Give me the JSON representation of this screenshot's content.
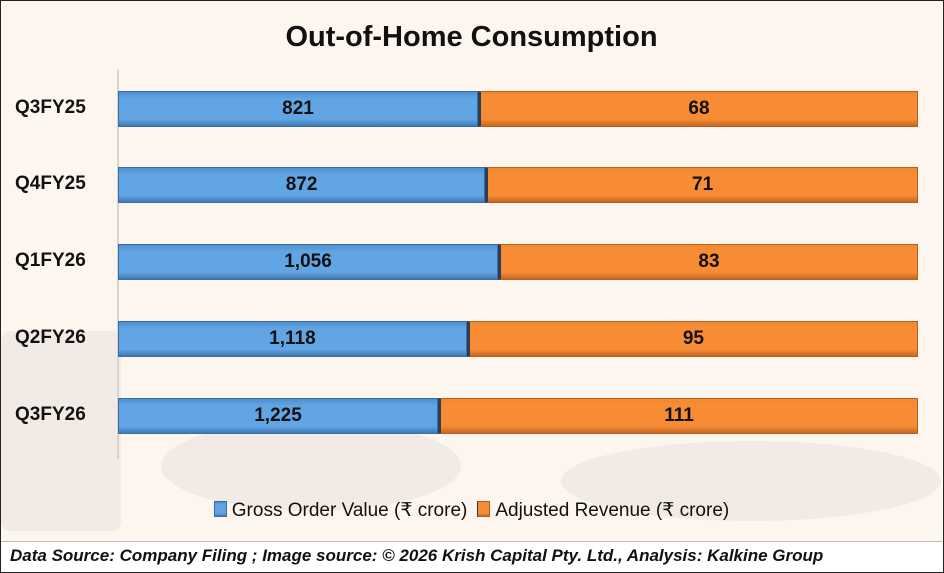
{
  "chart_data": {
    "type": "bar",
    "orientation": "horizontal",
    "stacked": "100%",
    "title": "Out-of-Home Consumption",
    "categories": [
      "Q3FY25",
      "Q4FY25",
      "Q1FY26",
      "Q2FY26",
      "Q3FY26"
    ],
    "series": [
      {
        "name": "Gross Order Value (₹ crore)",
        "color": "#62a5e4",
        "values": [
          821,
          872,
          1056,
          1118,
          1225
        ],
        "labels": [
          "821",
          "872",
          "1,056",
          "1,118",
          "1,225"
        ]
      },
      {
        "name": "Adjusted Revenue (₹ crore)",
        "color": "#f78c35",
        "values": [
          68,
          71,
          83,
          95,
          111
        ],
        "labels": [
          "68",
          "71",
          "83",
          "95",
          "111"
        ]
      }
    ],
    "displayed_first_series_share": [
      0.45,
      0.459,
      0.475,
      0.436,
      0.4
    ],
    "legend": "bottom",
    "grid": false
  },
  "footer": "Data Source: Company Filing ; Image source: © 2026 Krish Capital Pty. Ltd., Analysis: Kalkine Group"
}
